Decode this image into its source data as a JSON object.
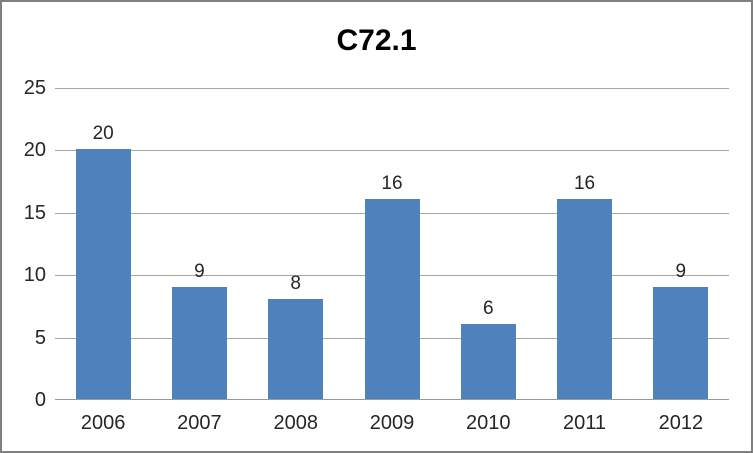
{
  "colors": {
    "bar": "#4f81bd",
    "gridline": "#a6a6a6",
    "axis": "#9b9b9b",
    "text": "#262626",
    "border": "#808080",
    "background": "#ffffff",
    "title_text": "#000000"
  },
  "chart_data": {
    "type": "bar",
    "title": "C72.1",
    "categories": [
      "2006",
      "2007",
      "2008",
      "2009",
      "2010",
      "2011",
      "2012"
    ],
    "values": [
      20,
      9,
      8,
      16,
      6,
      16,
      9
    ],
    "xlabel": "",
    "ylabel": "",
    "ylim": [
      0,
      25
    ],
    "yticks": [
      0,
      5,
      10,
      15,
      20,
      25
    ],
    "grid": true,
    "data_labels": [
      20,
      9,
      8,
      16,
      6,
      16,
      9
    ],
    "legend_position": "none"
  }
}
